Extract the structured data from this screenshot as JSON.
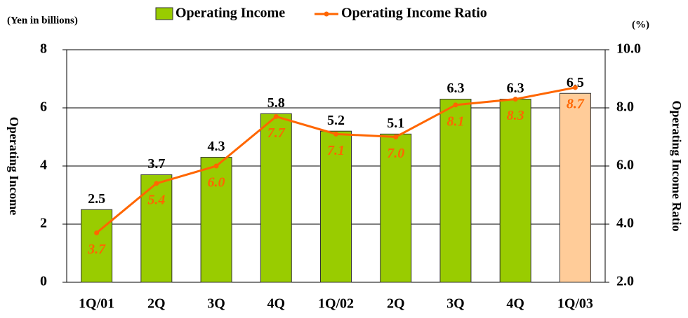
{
  "chart_data": {
    "type": "bar_line",
    "y_unit": "(Yen in billions)",
    "y2_unit": "(%)",
    "ylabel": "Operating Income",
    "y2label": "Operating Income Ratio",
    "categories": [
      "1Q/01",
      "2Q",
      "3Q",
      "4Q",
      "1Q/02",
      "2Q",
      "3Q",
      "4Q",
      "1Q/03"
    ],
    "series": [
      {
        "name": "Operating Income",
        "type": "bar",
        "color": "#99cc00",
        "colors": [
          "#99cc00",
          "#99cc00",
          "#99cc00",
          "#99cc00",
          "#99cc00",
          "#99cc00",
          "#99cc00",
          "#99cc00",
          "#ffcc99"
        ],
        "values": [
          2.5,
          3.7,
          4.3,
          5.8,
          5.2,
          5.1,
          6.3,
          6.3,
          6.5
        ]
      },
      {
        "name": "Operating Income Ratio",
        "type": "line",
        "axis": "y2",
        "color": "#ff6600",
        "values": [
          3.7,
          5.4,
          6.0,
          7.7,
          7.1,
          7.0,
          8.1,
          8.3,
          8.7
        ],
        "value_labels": [
          "3.7",
          "5.4",
          "6.0",
          "7.7",
          "7.1",
          "7.0",
          "8.1",
          "8.3",
          "8.7"
        ]
      }
    ],
    "ylim": [
      0,
      8
    ],
    "yticks": [
      0,
      2,
      4,
      6,
      8
    ],
    "y2lim": [
      2,
      10
    ],
    "y2ticks": [
      {
        "value": 2,
        "label": "2.0"
      },
      {
        "value": 4,
        "label": "4.0"
      },
      {
        "value": 6,
        "label": "6.0"
      },
      {
        "value": 8,
        "label": "8.0"
      },
      {
        "value": 10,
        "label": "10.0"
      }
    ],
    "grid": true
  }
}
